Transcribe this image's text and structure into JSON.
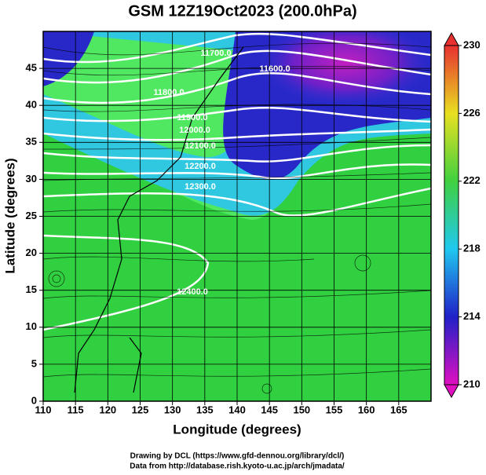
{
  "chart_data": {
    "type": "contour-map",
    "title": "GSM 12Z19Oct2023 (200.0hPa)",
    "x_label": "Longitude (degrees)",
    "y_label": "Latitude  (degrees)",
    "xlim": [
      110,
      170
    ],
    "xticks": [
      110,
      115,
      120,
      125,
      130,
      135,
      140,
      145,
      150,
      155,
      160,
      165
    ],
    "ylim": [
      0,
      50
    ],
    "yticks": [
      0,
      5,
      10,
      15,
      20,
      25,
      30,
      35,
      40,
      45
    ],
    "grid": true,
    "contour_labels": [
      "11600.0",
      "11700.0",
      "11800.0",
      "11900.0",
      "12000.0",
      "12100.0",
      "12200.0",
      "12300.0",
      "12400.0"
    ],
    "colorbar": {
      "lim": [
        210,
        230
      ],
      "ticks": [
        210,
        214,
        218,
        222,
        226,
        230
      ],
      "colors": [
        "#e010c0",
        "#2020c8",
        "#20c8f0",
        "#40d040",
        "#e8e020",
        "#e83030"
      ]
    },
    "footer": [
      "Drawing by DCL (https://www.gfd-dennou.org/library/dcl/)",
      "Data from http://database.rish.kyoto-u.ac.jp/arch/jmadata/"
    ]
  }
}
